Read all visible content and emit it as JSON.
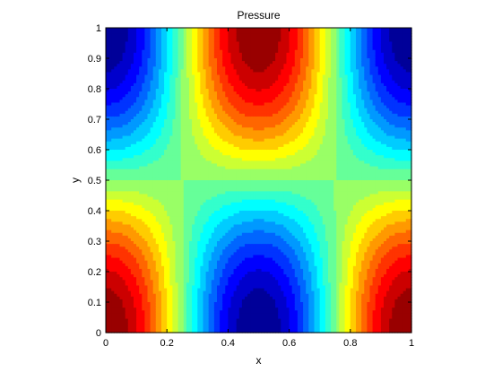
{
  "chart_data": {
    "type": "heatmap",
    "subtype": "filled-contour",
    "title": "Pressure",
    "xlabel": "x",
    "ylabel": "y",
    "xlim": [
      0,
      1
    ],
    "ylim": [
      0,
      1
    ],
    "x_ticks": [
      "0",
      "0.2",
      "0.4",
      "0.6",
      "0.8",
      "1"
    ],
    "y_ticks": [
      "0",
      "0.1",
      "0.2",
      "0.3",
      "0.4",
      "0.5",
      "0.6",
      "0.7",
      "0.8",
      "0.9",
      "1"
    ],
    "colormap": "jet",
    "contour_levels": 20,
    "grid": false,
    "field": "cos(2*pi*x)*cos(pi*y)",
    "features": [
      {
        "x": 0.5,
        "y": 1.0,
        "value": "max"
      },
      {
        "x": 0.5,
        "y": 0.0,
        "value": "min"
      },
      {
        "x": 0.0,
        "y": 1.0,
        "value": "min"
      },
      {
        "x": 1.0,
        "y": 1.0,
        "value": "min"
      },
      {
        "x": 0.0,
        "y": 0.0,
        "value": "max"
      },
      {
        "x": 1.0,
        "y": 0.0,
        "value": "max"
      }
    ],
    "saddle_points": [
      {
        "x": 0.25,
        "y": 0.5
      },
      {
        "x": 0.75,
        "y": 0.5
      }
    ]
  }
}
